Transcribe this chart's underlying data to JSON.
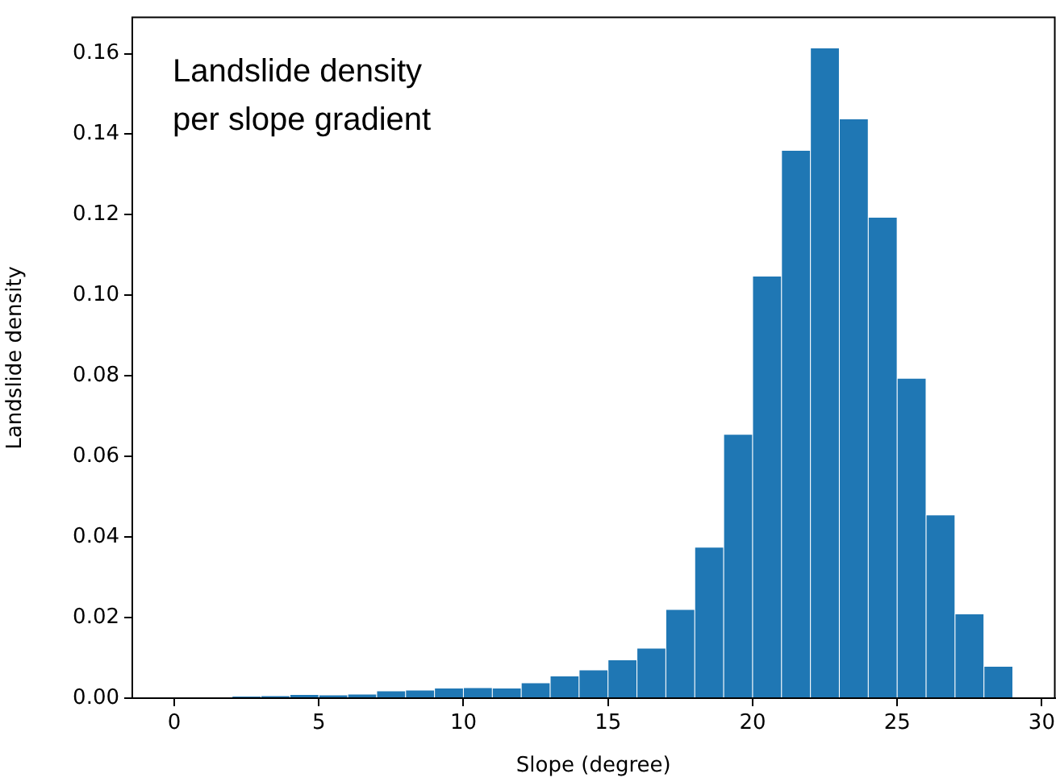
{
  "chart_data": {
    "type": "histogram",
    "xlabel": "Slope (degree)",
    "ylabel": "Landslide density",
    "annotations": [
      "Landslide density\nper slope gradient"
    ],
    "bins": [
      0,
      1,
      2,
      3,
      4,
      5,
      6,
      7,
      8,
      9,
      10,
      11,
      12,
      13,
      14,
      15,
      16,
      17,
      18,
      19,
      20,
      21,
      22,
      23,
      24,
      25,
      26,
      27,
      28,
      29
    ],
    "values": [
      0.0001,
      0.0002,
      0.0003,
      0.0005,
      0.0009,
      0.0008,
      0.001,
      0.0018,
      0.002,
      0.0025,
      0.0026,
      0.0025,
      0.0038,
      0.0055,
      0.007,
      0.0095,
      0.0124,
      0.022,
      0.0375,
      0.0655,
      0.1048,
      0.136,
      0.1614,
      0.1438,
      0.1194,
      0.0794,
      0.0455,
      0.0209,
      0.0079
    ],
    "color": "#1f77b4",
    "xlim": [
      -1.45,
      30.45
    ],
    "xticks": [
      0,
      5,
      10,
      15,
      20,
      25,
      30
    ],
    "ylim": [
      0,
      0.169
    ],
    "yticks": [
      {
        "value": 0,
        "label": "0.00"
      },
      {
        "value": 0.02,
        "label": "0.02"
      },
      {
        "value": 0.04,
        "label": "0.04"
      },
      {
        "value": 0.06,
        "label": "0.06"
      },
      {
        "value": 0.08,
        "label": "0.08"
      },
      {
        "value": 0.1,
        "label": "0.10"
      },
      {
        "value": 0.12,
        "label": "0.12"
      },
      {
        "value": 0.14,
        "label": "0.14"
      },
      {
        "value": 0.16,
        "label": "0.16"
      }
    ],
    "grid": false,
    "legend": false
  }
}
